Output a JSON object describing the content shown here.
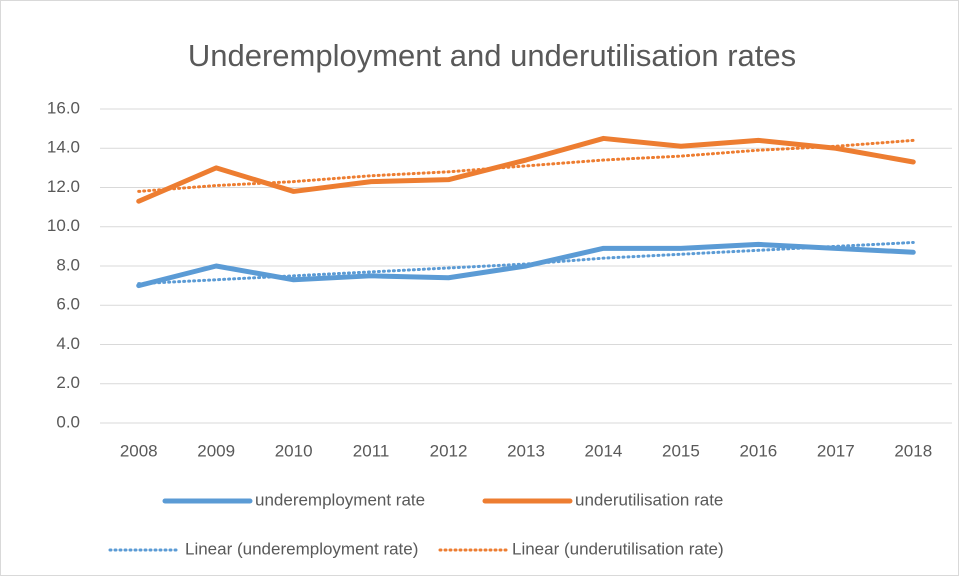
{
  "chart_data": {
    "type": "line",
    "title": "Underemployment and underutilisation rates",
    "categories": [
      "2008",
      "2009",
      "2010",
      "2011",
      "2012",
      "2013",
      "2014",
      "2015",
      "2016",
      "2017",
      "2018"
    ],
    "series": [
      {
        "name": "underemployment rate",
        "color": "#5b9bd5",
        "line_style": "solid",
        "values": [
          7.0,
          8.0,
          7.3,
          7.5,
          7.4,
          8.0,
          8.9,
          8.9,
          9.1,
          8.9,
          8.7
        ]
      },
      {
        "name": "underutilisation rate",
        "color": "#ed7d31",
        "line_style": "solid",
        "values": [
          11.3,
          13.0,
          11.8,
          12.3,
          12.4,
          13.4,
          14.5,
          14.1,
          14.4,
          14.0,
          13.3
        ]
      },
      {
        "name": "Linear (underemployment rate)",
        "color": "#5b9bd5",
        "line_style": "dotted",
        "values": [
          7.1,
          7.3,
          7.5,
          7.7,
          7.9,
          8.1,
          8.4,
          8.6,
          8.8,
          9.0,
          9.2
        ]
      },
      {
        "name": "Linear (underutilisation rate)",
        "color": "#ed7d31",
        "line_style": "dotted",
        "values": [
          11.8,
          12.1,
          12.3,
          12.6,
          12.8,
          13.1,
          13.4,
          13.6,
          13.9,
          14.1,
          14.4
        ]
      }
    ],
    "ylim": [
      0,
      16
    ],
    "yticks": [
      {
        "value": 0,
        "label": "0.0"
      },
      {
        "value": 2,
        "label": "2.0"
      },
      {
        "value": 4,
        "label": "4.0"
      },
      {
        "value": 6,
        "label": "6.0"
      },
      {
        "value": 8,
        "label": "8.0"
      },
      {
        "value": 10,
        "label": "10.0"
      },
      {
        "value": 12,
        "label": "12.0"
      },
      {
        "value": 14,
        "label": "14.0"
      },
      {
        "value": 16,
        "label": "16.0"
      }
    ],
    "grid": true,
    "legend": "bottom"
  }
}
